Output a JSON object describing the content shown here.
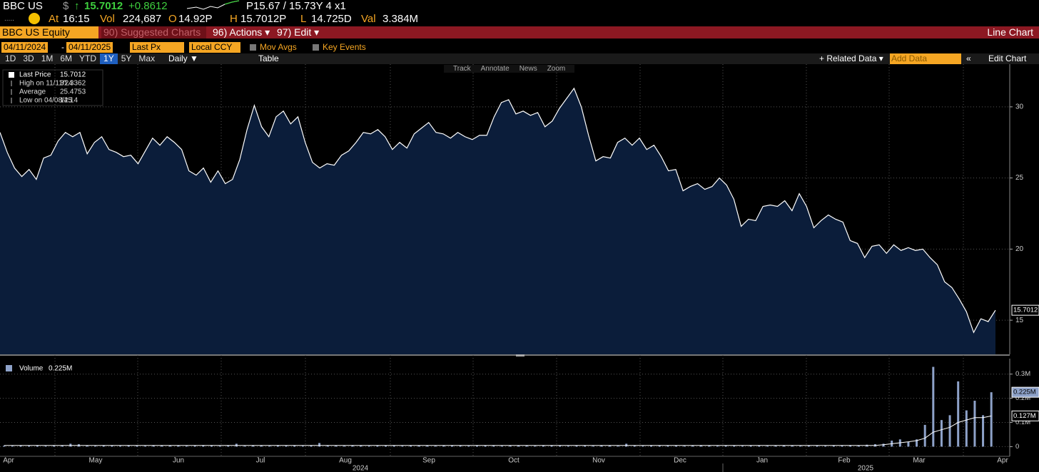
{
  "header": {
    "ticker": "BBC US",
    "currency": "$",
    "price": "15.7012",
    "change": "+0.8612",
    "quote": "P15.67 / 15.73Y 4 x1",
    "dots": ".....",
    "time_label": "At",
    "time": "16:15",
    "vol_label": "Vol",
    "vol": "224,687",
    "open_label": "O",
    "open": "14.92P",
    "high_label": "H",
    "high": "15.7012P",
    "low_label": "L",
    "low": "14.725D",
    "val_label": "Val",
    "val": "3.384M"
  },
  "menu": {
    "security": "BBC US Equity",
    "suggested": "90) Suggested Charts",
    "actions": "96) Actions ▾",
    "edit": "97) Edit ▾",
    "chart_type": "Line Chart"
  },
  "toolbar": {
    "start": "04/11/2024",
    "dash": "-",
    "end": "04/11/2025",
    "field": "Last Px",
    "currency": "Local CCY",
    "mov_avgs": "Mov Avgs",
    "key_events": "Key Events",
    "periods": [
      "1D",
      "3D",
      "1M",
      "6M",
      "YTD",
      "1Y",
      "5Y",
      "Max"
    ],
    "frequency": "Daily ▼",
    "table": "Table",
    "related": "+ Related Data ▾",
    "add_data": "Add Data",
    "collapse": "«",
    "edit_chart": "Edit Chart"
  },
  "chart_tools": [
    "Track",
    "Annotate",
    "News",
    "Zoom"
  ],
  "chart_data": [
    {
      "type": "area",
      "series": [
        {
          "name": "Last Price",
          "color": "#ffffff",
          "fill": "#0b1d3a",
          "values": [
            28.2,
            26.8,
            25.7,
            25.1,
            25.6,
            24.9,
            26.4,
            26.6,
            27.6,
            28.2,
            27.9,
            28.2,
            26.7,
            27.5,
            27.9,
            27.0,
            26.8,
            26.5,
            26.6,
            26.0,
            26.9,
            27.8,
            27.3,
            27.9,
            27.5,
            27.0,
            25.5,
            25.2,
            25.7,
            24.7,
            25.5,
            24.6,
            24.9,
            26.3,
            28.4,
            30.1,
            28.6,
            27.9,
            29.3,
            29.7,
            28.8,
            29.3,
            27.5,
            26.1,
            25.7,
            26.0,
            25.9,
            26.6,
            26.9,
            27.5,
            28.2,
            28.1,
            28.4,
            27.9,
            27.0,
            27.5,
            27.1,
            28.1,
            28.5,
            28.9,
            28.2,
            28.1,
            27.8,
            28.2,
            27.9,
            27.7,
            28.0,
            28.0,
            29.3,
            30.3,
            30.5,
            29.5,
            29.7,
            29.4,
            29.6,
            28.6,
            29.0,
            29.9,
            30.6,
            31.3,
            30.0,
            28.0,
            26.2,
            26.5,
            26.4,
            27.5,
            27.8,
            27.3,
            27.8,
            27.0,
            27.3,
            26.5,
            25.5,
            25.6,
            24.1,
            24.4,
            24.6,
            24.2,
            24.4,
            25.0,
            24.5,
            23.5,
            21.6,
            22.1,
            22.0,
            23.0,
            23.1,
            23.0,
            23.4,
            22.7,
            23.9,
            23.0,
            21.5,
            22.0,
            22.4,
            22.1,
            21.9,
            20.6,
            20.4,
            19.4,
            20.2,
            20.3,
            19.7,
            20.3,
            19.9,
            20.1,
            19.9,
            20.0,
            19.4,
            18.9,
            17.7,
            17.3,
            16.5,
            15.6,
            14.14,
            15.1,
            14.9,
            15.7012
          ]
        }
      ],
      "last_label": "15.7012",
      "legend_items": [
        {
          "label": "High on 11/11/24",
          "value": "31.3362"
        },
        {
          "label": "Average",
          "value": "25.4753"
        },
        {
          "label": "Low on 04/08/25",
          "value": "14.14"
        }
      ],
      "ylim": [
        12.6,
        33.0
      ],
      "yticks": [
        15,
        20,
        25,
        30
      ],
      "grid": true
    },
    {
      "type": "bar",
      "series": [
        {
          "name": "Volume",
          "color": "#8ea2c9",
          "last_label": "0.225M",
          "values": [
            0.004,
            0.003,
            0.005,
            0.004,
            0.006,
            0.003,
            0.004,
            0.005,
            0.012,
            0.01,
            0.004,
            0.003,
            0.005,
            0.004,
            0.003,
            0.006,
            0.004,
            0.003,
            0.005,
            0.004,
            0.004,
            0.005,
            0.003,
            0.004,
            0.006,
            0.004,
            0.003,
            0.005,
            0.012,
            0.003,
            0.005,
            0.004,
            0.003,
            0.006,
            0.004,
            0.005,
            0.003,
            0.004,
            0.015,
            0.004,
            0.004,
            0.003,
            0.005,
            0.004,
            0.003,
            0.004,
            0.005,
            0.004,
            0.003,
            0.004,
            0.005,
            0.004,
            0.003,
            0.004,
            0.005,
            0.004,
            0.003,
            0.004,
            0.005,
            0.004,
            0.003,
            0.004,
            0.005,
            0.004,
            0.003,
            0.004,
            0.005,
            0.004,
            0.003,
            0.004,
            0.004,
            0.003,
            0.005,
            0.004,
            0.003,
            0.012,
            0.004,
            0.003,
            0.005,
            0.004,
            0.004,
            0.005,
            0.003,
            0.004,
            0.006,
            0.004,
            0.003,
            0.005,
            0.004,
            0.003,
            0.004,
            0.005,
            0.003,
            0.004,
            0.005,
            0.004,
            0.003,
            0.005,
            0.004,
            0.003,
            0.005,
            0.004,
            0.006,
            0.005,
            0.008,
            0.01,
            0.012,
            0.025,
            0.03,
            0.02,
            0.03,
            0.09,
            0.33,
            0.11,
            0.13,
            0.27,
            0.15,
            0.19,
            0.13,
            0.225
          ]
        },
        {
          "type": "line",
          "color": "#ffffff",
          "last_label": "0.127M",
          "values": [
            0.005,
            0.005,
            0.005,
            0.005,
            0.005,
            0.005,
            0.005,
            0.005,
            0.005,
            0.005,
            0.005,
            0.005,
            0.005,
            0.005,
            0.005,
            0.005,
            0.005,
            0.005,
            0.005,
            0.005,
            0.005,
            0.005,
            0.005,
            0.005,
            0.005,
            0.005,
            0.005,
            0.005,
            0.005,
            0.005,
            0.005,
            0.005,
            0.005,
            0.005,
            0.005,
            0.005,
            0.005,
            0.005,
            0.005,
            0.005,
            0.005,
            0.005,
            0.005,
            0.005,
            0.005,
            0.005,
            0.005,
            0.005,
            0.005,
            0.005,
            0.005,
            0.005,
            0.005,
            0.005,
            0.005,
            0.005,
            0.005,
            0.005,
            0.005,
            0.005,
            0.005,
            0.005,
            0.005,
            0.005,
            0.005,
            0.005,
            0.005,
            0.005,
            0.005,
            0.005,
            0.005,
            0.005,
            0.005,
            0.005,
            0.005,
            0.005,
            0.005,
            0.005,
            0.005,
            0.005,
            0.005,
            0.005,
            0.005,
            0.005,
            0.005,
            0.005,
            0.005,
            0.005,
            0.005,
            0.005,
            0.005,
            0.005,
            0.005,
            0.005,
            0.005,
            0.005,
            0.005,
            0.005,
            0.005,
            0.005,
            0.005,
            0.005,
            0.005,
            0.005,
            0.005,
            0.005,
            0.008,
            0.012,
            0.016,
            0.02,
            0.025,
            0.035,
            0.06,
            0.07,
            0.08,
            0.1,
            0.11,
            0.12,
            0.12,
            0.127
          ]
        }
      ],
      "ylim": [
        -0.04,
        0.364
      ],
      "yticks": [
        0,
        {
          "value": 0.1,
          "label": "0.1M"
        },
        {
          "value": 0.2,
          "label": "0.2M"
        },
        {
          "value": 0.3,
          "label": "0.3M"
        }
      ],
      "grid": true,
      "x_labels": [
        "Apr",
        "May",
        "Jun",
        "Jul",
        "Aug",
        "Sep",
        "Oct",
        "Nov",
        "Dec",
        "Jan",
        "Feb",
        "Mar",
        "Apr"
      ],
      "x_group_labels": [
        "2024",
        "2025"
      ]
    }
  ]
}
